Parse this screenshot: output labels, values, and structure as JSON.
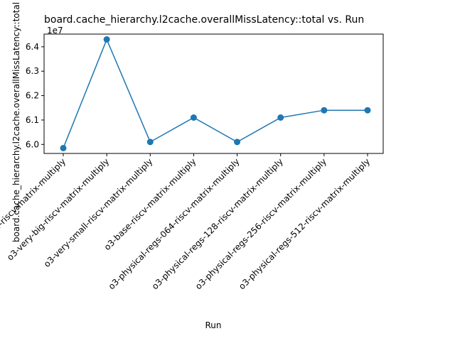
{
  "chart_data": {
    "type": "line",
    "title": "board.cache_hierarchy.l2cache.overallMissLatency::total vs. Run",
    "xlabel": "Run",
    "ylabel": "board.cache_hierarchy.l2cache.overallMissLatency::total",
    "y_offset_label": "1e7",
    "y_scale": 10000000,
    "categories": [
      "inorder-riscv-matrix-multiply",
      "o3-very-big-riscv-matrix-multiply",
      "o3-very-small-riscv-matrix-multiply",
      "o3-base-riscv-matrix-multiply",
      "o3-physical-regs-064-riscv-matrix-multiply",
      "o3-physical-regs-128-riscv-matrix-multiply",
      "o3-physical-regs-256-riscv-matrix-multiply",
      "o3-physical-regs-512-riscv-matrix-multiply"
    ],
    "series": [
      {
        "values": [
          59850000,
          64300000,
          60100000,
          61100000,
          60100000,
          61100000,
          61400000,
          61400000
        ],
        "color": "#1f77b4",
        "marker": "circle"
      }
    ],
    "yticks": [
      "6.0",
      "6.1",
      "6.2",
      "6.3",
      "6.4"
    ],
    "ytick_values": [
      60000000,
      61000000,
      62000000,
      63000000,
      64000000
    ],
    "ylim": [
      59630000,
      64520000
    ],
    "grid": false,
    "legend": "none"
  }
}
